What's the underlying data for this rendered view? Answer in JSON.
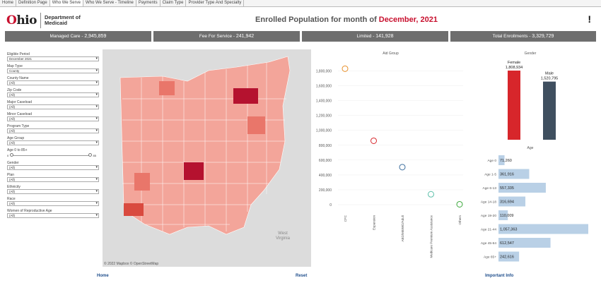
{
  "tabs": [
    "Home",
    "Definition Page",
    "Who We Serve",
    "Who We Serve - Timeline",
    "Payments",
    "Claim Type",
    "Provider Type And Specialty"
  ],
  "logo": {
    "brand": "hio",
    "dept_line1": "Department of",
    "dept_line2": "Medicaid"
  },
  "header": {
    "title_prefix": "Enrolled Population for month of",
    "title_month": "December, 2021",
    "info_icon": "!"
  },
  "kpis": [
    {
      "label": "Managed Care",
      "value": "2,945,859"
    },
    {
      "label": "Fee For Service",
      "value": "241,942"
    },
    {
      "label": "Limited",
      "value": "141,928"
    },
    {
      "label": "Total Enrollments",
      "value": "3,329,729"
    }
  ],
  "filters": [
    {
      "label": "Eligible Period",
      "value": "December 2021"
    },
    {
      "label": "Map Type",
      "value": "County"
    },
    {
      "label": "County Name",
      "value": "(All)"
    },
    {
      "label": "Zip Code",
      "value": "(All)"
    },
    {
      "label": "Major Caseload",
      "value": "(All)"
    },
    {
      "label": "Minor Caseload",
      "value": "(All)"
    },
    {
      "label": "Program Type",
      "value": "(All)"
    },
    {
      "label": "Age Group",
      "value": "(All)"
    },
    {
      "label": "Gender",
      "value": "(All)"
    },
    {
      "label": "Plan",
      "value": "(All)"
    },
    {
      "label": "Ethnicity",
      "value": "(All)"
    },
    {
      "label": "Race",
      "value": "(All)"
    },
    {
      "label": "Women of Reproductive Age",
      "value": "(All)"
    }
  ],
  "age_slider": {
    "label": "Age 0 to 85+",
    "min": "0",
    "max": "85"
  },
  "map": {
    "credit": "© 2022 Mapbox © OpenStreetMap",
    "wv_line1": "West",
    "wv_line2": "Virginia"
  },
  "bottom": {
    "home": "Home",
    "reset": "Reset",
    "info": "Important Info"
  },
  "colors": {
    "accent": "#c8102e",
    "kpi_bg": "#6e6e6e",
    "female": "#d7262b",
    "male": "#3f4f5f",
    "age_bar": "#b9d0e6"
  },
  "chart_data": [
    {
      "type": "scatter",
      "title": "Aid Group",
      "categories": [
        "CFC",
        "Expansion",
        "ABD/MBIWD/Adult",
        "Medicare Premium Assistance",
        "Others"
      ],
      "values": [
        1830000,
        860000,
        505000,
        140000,
        5000
      ],
      "colors": [
        "#e8902a",
        "#d7262b",
        "#3e6f9e",
        "#5bbfa9",
        "#3aa83a"
      ],
      "yticks": [
        "0",
        "200,000",
        "400,000",
        "600,000",
        "800,000",
        "1,000,000",
        "1,200,000",
        "1,400,000",
        "1,600,000",
        "1,800,000"
      ],
      "ylim": [
        0,
        1900000
      ]
    },
    {
      "type": "bar",
      "title": "Gender",
      "categories": [
        "Female",
        "Male"
      ],
      "values": [
        1808934,
        1520795
      ],
      "labels": [
        "1,808,934",
        "1,520,795"
      ]
    },
    {
      "type": "bar",
      "title": "Age",
      "orientation": "horizontal",
      "categories": [
        "Age 0",
        "Age 1-5",
        "Age 6-13",
        "Age 14-18",
        "Age 19-20",
        "Age 21-44",
        "Age 45-64",
        "Age 65+"
      ],
      "values": [
        71260,
        361916,
        557335,
        316694,
        110009,
        1057363,
        612547,
        242616
      ],
      "labels": [
        "71,260",
        "361,916",
        "557,335",
        "316,694",
        "110,009",
        "1,057,363",
        "612,547",
        "242,616"
      ]
    }
  ]
}
